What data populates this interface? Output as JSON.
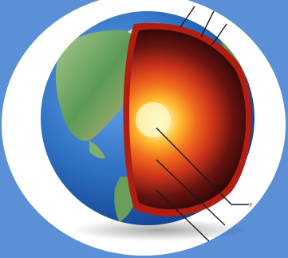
{
  "figure": {
    "colors": {
      "background": "#5b8fd6",
      "frame": "#ffffff",
      "ocean": "#2d6fc0",
      "ocean_dark": "#0f3a86",
      "land": "#5a9a56",
      "land_light": "#a9c98a",
      "land_dry": "#c8b27a",
      "crust": "#b21d12",
      "mantle": "#3a0a08",
      "outer_core": "#e2461a",
      "inner_core": "#fff2a0",
      "leader_line": "#1a1a1a"
    },
    "layers": [
      "crust",
      "mantle",
      "outer-core",
      "inner-core"
    ],
    "leader_label_marker": "F"
  }
}
